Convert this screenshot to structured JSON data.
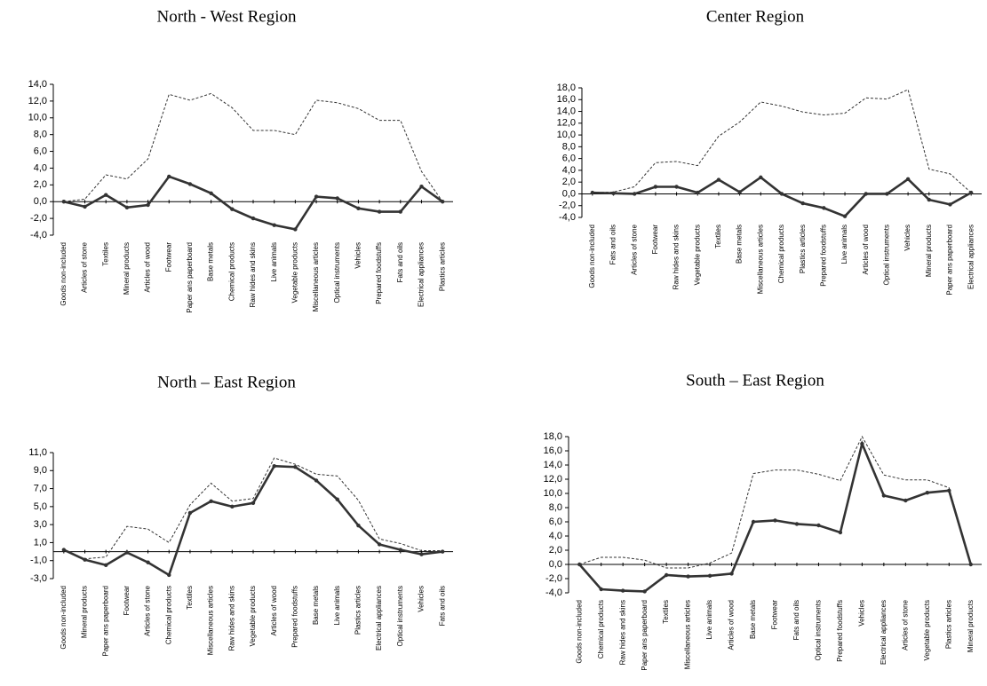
{
  "chart_data": [
    {
      "type": "line",
      "title": "North - West Region",
      "categories": [
        "Goods non-included",
        "Articles of stone",
        "Textiles",
        "Mineral products",
        "Articles of wood",
        "Footwear",
        "Paper ans paperboard",
        "Base metals",
        "Chemical products",
        "Raw hides and skins",
        "Live animals",
        "Vegetable products",
        "Miscellaneous articles",
        "Optical instruments",
        "Vehicles",
        "Prepared foodstuffs",
        "Fats and oils",
        "Electrical appliances",
        "Plastics articles"
      ],
      "series": [
        {
          "color": "#333333",
          "dashed": false,
          "values": [
            0,
            -0.6,
            0.8,
            -0.7,
            -0.4,
            3.0,
            2.1,
            1.0,
            -0.9,
            -2.0,
            -2.8,
            -3.3,
            0.6,
            0.4,
            -0.8,
            -1.2,
            -1.2,
            1.8,
            0
          ]
        },
        {
          "color": "#333333",
          "dashed": true,
          "values": [
            0,
            0.3,
            3.2,
            2.7,
            5.1,
            12.8,
            12.1,
            12.9,
            11.2,
            8.5,
            8.5,
            8.0,
            12.1,
            11.8,
            11.1,
            9.7,
            9.7,
            3.6,
            0
          ]
        }
      ],
      "ylim": [
        -4,
        14
      ],
      "yticks": [
        {
          "value": -4,
          "label": "-4,0"
        },
        {
          "value": -2,
          "label": "-2,0"
        },
        {
          "value": 0,
          "label": "0,0"
        },
        {
          "value": 2,
          "label": "2,0"
        },
        {
          "value": 4,
          "label": "4,0"
        },
        {
          "value": 6,
          "label": "6,0"
        },
        {
          "value": 8,
          "label": "8,0"
        },
        {
          "value": 10,
          "label": "10,0"
        },
        {
          "value": 12,
          "label": "12,0"
        },
        {
          "value": 14,
          "label": "14,0"
        }
      ]
    },
    {
      "type": "line",
      "title": "Center Region",
      "categories": [
        "Goods non-included",
        "Fats and oils",
        "Articles of stone",
        "Footwear",
        "Raw hides and skins",
        "Vegetable products",
        "Textiles",
        "Base metals",
        "Miscellaneous articles",
        "Chemical products",
        "Plastics articles",
        "Prepared foodstuffs",
        "Live animals",
        "Articles of wood",
        "Optical instruments",
        "Vehicles",
        "Mineral products",
        "Paper ans paperboard",
        "Electrical appliances"
      ],
      "series": [
        {
          "color": "#333333",
          "dashed": false,
          "values": [
            0.2,
            0.1,
            0,
            1.2,
            1.2,
            0.2,
            2.4,
            0.3,
            2.8,
            0,
            -1.6,
            -2.4,
            -3.8,
            0,
            0,
            2.5,
            -1.0,
            -1.8,
            0.2
          ]
        },
        {
          "color": "#333333",
          "dashed": true,
          "values": [
            0.2,
            0.3,
            1.2,
            5.3,
            5.5,
            4.8,
            9.8,
            12.2,
            15.6,
            14.9,
            13.9,
            13.4,
            13.7,
            16.3,
            16.1,
            17.7,
            4.2,
            3.4,
            0.2
          ]
        }
      ],
      "ylim": [
        -4,
        18
      ],
      "yticks": [
        {
          "value": -4,
          "label": "-4,0"
        },
        {
          "value": -2,
          "label": "-2,0"
        },
        {
          "value": 0,
          "label": "0,0"
        },
        {
          "value": 2,
          "label": "2,0"
        },
        {
          "value": 4,
          "label": "4,0"
        },
        {
          "value": 6,
          "label": "6,0"
        },
        {
          "value": 8,
          "label": "8,0"
        },
        {
          "value": 10,
          "label": "10,0"
        },
        {
          "value": 12,
          "label": "12,0"
        },
        {
          "value": 14,
          "label": "14,0"
        },
        {
          "value": 16,
          "label": "16,0"
        },
        {
          "value": 18,
          "label": "18,0"
        }
      ]
    },
    {
      "type": "line",
      "title": "North – East Region",
      "categories": [
        "Goods non-included",
        "Mineral products",
        "Paper ans paperboard",
        "Footwear",
        "Articles of stone",
        "Chemical products",
        "Textiles",
        "Miscellaneous articles",
        "Raw hides and skins",
        "Vegetable products",
        "Articles of wood",
        "Prepared foodstuffs",
        "Base metals",
        "Live animals",
        "Plastics articles",
        "Electrical appliances",
        "Optical instruments",
        "Vehicles",
        "Fats and oils"
      ],
      "series": [
        {
          "color": "#333333",
          "dashed": false,
          "values": [
            0.2,
            -0.9,
            -1.5,
            -0.1,
            -1.2,
            -2.6,
            4.3,
            5.6,
            5.0,
            5.4,
            9.5,
            9.4,
            7.9,
            5.8,
            2.9,
            0.8,
            0.2,
            -0.3,
            0
          ]
        },
        {
          "color": "#333333",
          "dashed": true,
          "values": [
            0.2,
            -0.8,
            -0.6,
            2.8,
            2.5,
            1.0,
            5.2,
            7.6,
            5.6,
            5.9,
            10.4,
            9.7,
            8.6,
            8.4,
            5.7,
            1.4,
            0.9,
            0.1,
            0.1
          ]
        }
      ],
      "ylim": [
        -3,
        11
      ],
      "yticks": [
        {
          "value": -3,
          "label": "-3,0"
        },
        {
          "value": -1,
          "label": "-1,0"
        },
        {
          "value": 1,
          "label": "1,0"
        },
        {
          "value": 3,
          "label": "3,0"
        },
        {
          "value": 5,
          "label": "5,0"
        },
        {
          "value": 7,
          "label": "7,0"
        },
        {
          "value": 9,
          "label": "9,0"
        },
        {
          "value": 11,
          "label": "11,0"
        }
      ]
    },
    {
      "type": "line",
      "title": "South – East Region",
      "categories": [
        "Goods non-included",
        "Chemical products",
        "Raw hides and skins",
        "Paper ans paperboard",
        "Textiles",
        "Miscellaneous articles",
        "Live animals",
        "Articles of wood",
        "Base metals",
        "Footwear",
        "Fats and oils",
        "Optical instruments",
        "Prepared foodstuffs",
        "Vehicles",
        "Electrical appliances",
        "Articles of stone",
        "Vegetable products",
        "Plastics articles",
        "Mineral products"
      ],
      "series": [
        {
          "color": "#333333",
          "dashed": false,
          "values": [
            0,
            -3.5,
            -3.7,
            -3.8,
            -1.5,
            -1.7,
            -1.6,
            -1.3,
            6.0,
            6.2,
            5.7,
            5.5,
            4.5,
            17.0,
            9.7,
            9.0,
            10.1,
            10.4,
            0
          ]
        },
        {
          "color": "#333333",
          "dashed": true,
          "values": [
            0,
            1.0,
            1.0,
            0.6,
            -0.5,
            -0.5,
            0.2,
            1.6,
            12.8,
            13.3,
            13.3,
            12.7,
            11.8,
            18.0,
            12.6,
            11.9,
            11.9,
            10.8,
            0
          ]
        }
      ],
      "ylim": [
        -4,
        18
      ],
      "yticks": [
        {
          "value": -4,
          "label": "-4,0"
        },
        {
          "value": -2,
          "label": "-2,0"
        },
        {
          "value": 0,
          "label": "0,0"
        },
        {
          "value": 2,
          "label": "2,0"
        },
        {
          "value": 4,
          "label": "4,0"
        },
        {
          "value": 6,
          "label": "6,0"
        },
        {
          "value": 8,
          "label": "8,0"
        },
        {
          "value": 10,
          "label": "10,0"
        },
        {
          "value": 12,
          "label": "12,0"
        },
        {
          "value": 14,
          "label": "14,0"
        },
        {
          "value": 16,
          "label": "16,0"
        },
        {
          "value": 18,
          "label": "18,0"
        }
      ]
    }
  ]
}
